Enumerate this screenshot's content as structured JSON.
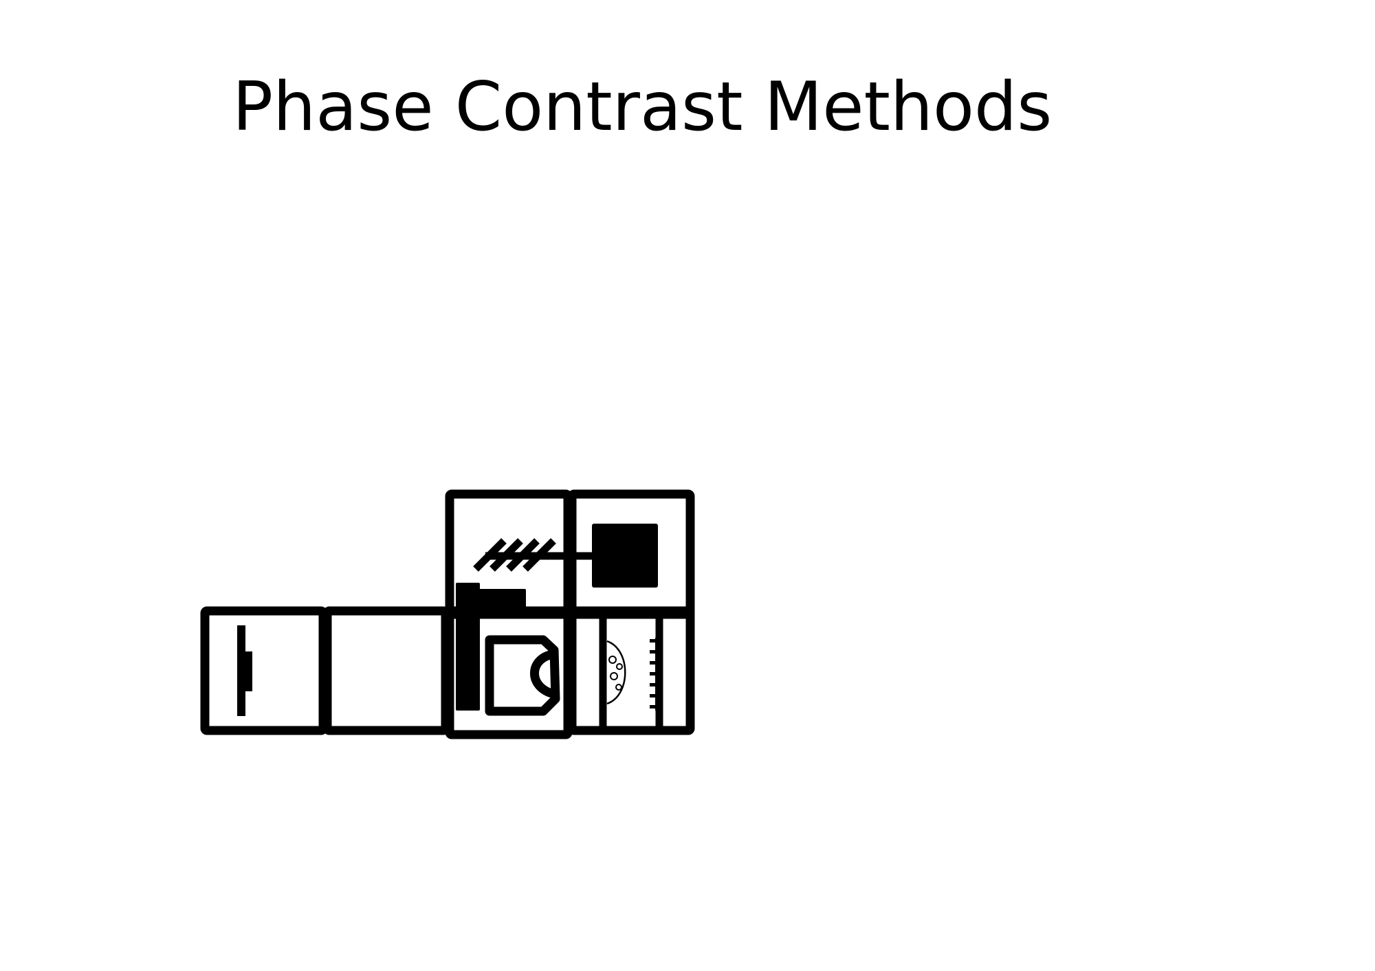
{
  "slide": {
    "title": "Phase Contrast Methods"
  },
  "colors": {
    "ink": "#000000",
    "background": "#ffffff"
  }
}
